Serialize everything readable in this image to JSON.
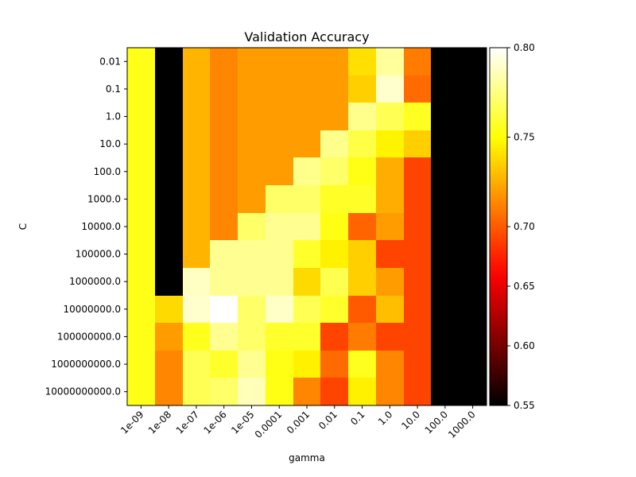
{
  "chart_data": {
    "type": "heatmap",
    "title": "Validation Accuracy",
    "xlabel": "gamma",
    "ylabel": "C",
    "x_categories": [
      "1e-09",
      "1e-08",
      "1e-07",
      "1e-06",
      "1e-05",
      "0.0001",
      "0.001",
      "0.01",
      "0.1",
      "1.0",
      "10.0",
      "100.0",
      "1000.0"
    ],
    "y_categories": [
      "0.01",
      "0.1",
      "1.0",
      "10.0",
      "100.0",
      "1000.0",
      "10000.0",
      "100000.0",
      "1000000.0",
      "10000000.0",
      "100000000.0",
      "1000000000.0",
      "10000000000.0"
    ],
    "values": [
      [
        0.754,
        0.55,
        0.727,
        0.713,
        0.72,
        0.72,
        0.72,
        0.72,
        0.74,
        0.78,
        0.71,
        0.55,
        0.55
      ],
      [
        0.754,
        0.55,
        0.727,
        0.713,
        0.72,
        0.72,
        0.72,
        0.72,
        0.735,
        0.79,
        0.705,
        0.55,
        0.55
      ],
      [
        0.754,
        0.55,
        0.727,
        0.713,
        0.72,
        0.72,
        0.72,
        0.72,
        0.777,
        0.766,
        0.756,
        0.55,
        0.55
      ],
      [
        0.754,
        0.55,
        0.727,
        0.713,
        0.72,
        0.72,
        0.72,
        0.777,
        0.763,
        0.746,
        0.735,
        0.55,
        0.55
      ],
      [
        0.754,
        0.55,
        0.727,
        0.713,
        0.72,
        0.72,
        0.777,
        0.77,
        0.753,
        0.725,
        0.69,
        0.55,
        0.55
      ],
      [
        0.754,
        0.55,
        0.727,
        0.713,
        0.72,
        0.77,
        0.77,
        0.757,
        0.757,
        0.725,
        0.69,
        0.55,
        0.55
      ],
      [
        0.754,
        0.55,
        0.727,
        0.713,
        0.77,
        0.778,
        0.778,
        0.753,
        0.703,
        0.72,
        0.69,
        0.55,
        0.55
      ],
      [
        0.754,
        0.55,
        0.727,
        0.778,
        0.778,
        0.778,
        0.758,
        0.745,
        0.735,
        0.69,
        0.69,
        0.55,
        0.55
      ],
      [
        0.754,
        0.55,
        0.788,
        0.778,
        0.778,
        0.778,
        0.738,
        0.765,
        0.735,
        0.72,
        0.69,
        0.55,
        0.55
      ],
      [
        0.754,
        0.738,
        0.79,
        0.8,
        0.77,
        0.789,
        0.766,
        0.758,
        0.7,
        0.73,
        0.69,
        0.55,
        0.55
      ],
      [
        0.754,
        0.72,
        0.755,
        0.778,
        0.77,
        0.758,
        0.758,
        0.69,
        0.71,
        0.69,
        0.69,
        0.55,
        0.55
      ],
      [
        0.754,
        0.713,
        0.766,
        0.758,
        0.778,
        0.753,
        0.745,
        0.705,
        0.755,
        0.713,
        0.69,
        0.55,
        0.55
      ],
      [
        0.754,
        0.713,
        0.766,
        0.77,
        0.786,
        0.753,
        0.713,
        0.69,
        0.745,
        0.713,
        0.69,
        0.55,
        0.55
      ]
    ],
    "colormap": "hot",
    "colorbar": {
      "ticks": [
        "0.55",
        "0.60",
        "0.65",
        "0.70",
        "0.75",
        "0.80"
      ],
      "tick_values": [
        0.55,
        0.6,
        0.65,
        0.7,
        0.75,
        0.8
      ],
      "min": 0.55,
      "max": 0.8,
      "midpoint": 0.7
    },
    "grid": false
  }
}
